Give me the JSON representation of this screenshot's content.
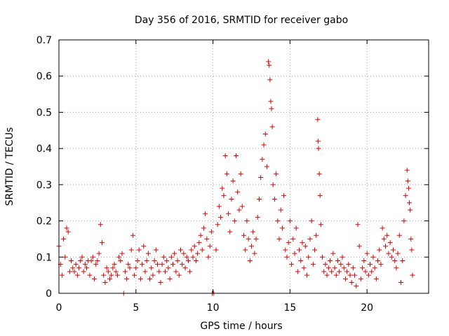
{
  "chart_data": {
    "type": "scatter",
    "title": "Day 356 of 2016, SRMTID for receiver gabo",
    "xlabel": "GPS time / hours",
    "ylabel": "SRMTID / TECUs",
    "xlim": [
      0,
      24
    ],
    "ylim": [
      0,
      0.7
    ],
    "x_ticks": [
      {
        "value": 0,
        "label": "0"
      },
      {
        "value": 5,
        "label": "5"
      },
      {
        "value": 10,
        "label": "10"
      },
      {
        "value": 15,
        "label": "15"
      },
      {
        "value": 20,
        "label": "20"
      }
    ],
    "y_ticks": [
      {
        "value": 0,
        "label": "0"
      },
      {
        "value": 0.1,
        "label": "0.1"
      },
      {
        "value": 0.2,
        "label": "0.2"
      },
      {
        "value": 0.3,
        "label": "0.3"
      },
      {
        "value": 0.4,
        "label": "0.4"
      },
      {
        "value": 0.5,
        "label": "0.5"
      },
      {
        "value": 0.6,
        "label": "0.6"
      },
      {
        "value": 0.7,
        "label": "0.7"
      }
    ],
    "grid": true,
    "marker": "+",
    "marker_color": "#e00000",
    "series": [
      {
        "name": "gabo",
        "points": [
          [
            0.0,
            0.13
          ],
          [
            0.1,
            0.08
          ],
          [
            0.2,
            0.05
          ],
          [
            0.3,
            0.15
          ],
          [
            0.4,
            0.1
          ],
          [
            0.5,
            0.18
          ],
          [
            0.6,
            0.17
          ],
          [
            0.7,
            0.06
          ],
          [
            0.8,
            0.09
          ],
          [
            0.9,
            0.07
          ],
          [
            1.0,
            0.06
          ],
          [
            1.1,
            0.08
          ],
          [
            1.2,
            0.05
          ],
          [
            1.3,
            0.07
          ],
          [
            1.4,
            0.09
          ],
          [
            1.5,
            0.1
          ],
          [
            1.6,
            0.06
          ],
          [
            1.7,
            0.08
          ],
          [
            1.8,
            0.07
          ],
          [
            1.9,
            0.09
          ],
          [
            2.0,
            0.05
          ],
          [
            2.1,
            0.09
          ],
          [
            2.2,
            0.1
          ],
          [
            2.3,
            0.04
          ],
          [
            2.4,
            0.08
          ],
          [
            2.5,
            0.09
          ],
          [
            2.6,
            0.11
          ],
          [
            2.7,
            0.19
          ],
          [
            2.8,
            0.14
          ],
          [
            2.9,
            0.05
          ],
          [
            3.0,
            0.03
          ],
          [
            3.1,
            0.07
          ],
          [
            3.2,
            0.06
          ],
          [
            3.3,
            0.04
          ],
          [
            3.4,
            0.05
          ],
          [
            3.5,
            0.07
          ],
          [
            3.6,
            0.08
          ],
          [
            3.7,
            0.06
          ],
          [
            3.8,
            0.05
          ],
          [
            3.9,
            0.1
          ],
          [
            4.0,
            0.09
          ],
          [
            4.1,
            0.11
          ],
          [
            4.2,
            0.0
          ],
          [
            4.3,
            0.06
          ],
          [
            4.4,
            0.04
          ],
          [
            4.5,
            0.08
          ],
          [
            4.6,
            0.07
          ],
          [
            4.7,
            0.12
          ],
          [
            4.8,
            0.16
          ],
          [
            4.9,
            0.05
          ],
          [
            5.0,
            0.07
          ],
          [
            5.1,
            0.09
          ],
          [
            5.2,
            0.12
          ],
          [
            5.3,
            0.04
          ],
          [
            5.4,
            0.08
          ],
          [
            5.5,
            0.13
          ],
          [
            5.6,
            0.06
          ],
          [
            5.7,
            0.09
          ],
          [
            5.8,
            0.11
          ],
          [
            5.9,
            0.04
          ],
          [
            6.0,
            0.07
          ],
          [
            6.1,
            0.05
          ],
          [
            6.2,
            0.09
          ],
          [
            6.3,
            0.12
          ],
          [
            6.4,
            0.08
          ],
          [
            6.5,
            0.06
          ],
          [
            6.6,
            0.03
          ],
          [
            6.7,
            0.08
          ],
          [
            6.8,
            0.1
          ],
          [
            6.9,
            0.06
          ],
          [
            7.0,
            0.09
          ],
          [
            7.1,
            0.07
          ],
          [
            7.2,
            0.04
          ],
          [
            7.3,
            0.1
          ],
          [
            7.4,
            0.08
          ],
          [
            7.5,
            0.11
          ],
          [
            7.6,
            0.06
          ],
          [
            7.7,
            0.09
          ],
          [
            7.8,
            0.05
          ],
          [
            7.9,
            0.12
          ],
          [
            8.0,
            0.08
          ],
          [
            8.1,
            0.11
          ],
          [
            8.2,
            0.07
          ],
          [
            8.3,
            0.1
          ],
          [
            8.4,
            0.09
          ],
          [
            8.5,
            0.06
          ],
          [
            8.6,
            0.12
          ],
          [
            8.7,
            0.1
          ],
          [
            8.8,
            0.13
          ],
          [
            8.9,
            0.09
          ],
          [
            9.0,
            0.11
          ],
          [
            9.1,
            0.14
          ],
          [
            9.2,
            0.16
          ],
          [
            9.3,
            0.12
          ],
          [
            9.4,
            0.18
          ],
          [
            9.5,
            0.22
          ],
          [
            9.6,
            0.15
          ],
          [
            9.7,
            0.1
          ],
          [
            9.8,
            0.13
          ],
          [
            9.9,
            0.17
          ],
          [
            9.95,
            0.0
          ],
          [
            10.05,
            0.0
          ],
          [
            10.2,
            0.12
          ],
          [
            10.3,
            0.19
          ],
          [
            10.4,
            0.24
          ],
          [
            10.5,
            0.21
          ],
          [
            10.6,
            0.29
          ],
          [
            10.7,
            0.27
          ],
          [
            10.8,
            0.38
          ],
          [
            10.9,
            0.33
          ],
          [
            11.0,
            0.22
          ],
          [
            11.1,
            0.17
          ],
          [
            11.2,
            0.26
          ],
          [
            11.3,
            0.31
          ],
          [
            11.4,
            0.2
          ],
          [
            11.5,
            0.38
          ],
          [
            11.6,
            0.28
          ],
          [
            11.7,
            0.23
          ],
          [
            11.8,
            0.33
          ],
          [
            11.9,
            0.24
          ],
          [
            12.0,
            0.16
          ],
          [
            12.1,
            0.12
          ],
          [
            12.2,
            0.2
          ],
          [
            12.3,
            0.15
          ],
          [
            12.4,
            0.09
          ],
          [
            12.5,
            0.13
          ],
          [
            12.6,
            0.17
          ],
          [
            12.7,
            0.11
          ],
          [
            12.8,
            0.15
          ],
          [
            12.9,
            0.21
          ],
          [
            13.0,
            0.26
          ],
          [
            13.1,
            0.32
          ],
          [
            13.2,
            0.37
          ],
          [
            13.3,
            0.41
          ],
          [
            13.4,
            0.44
          ],
          [
            13.5,
            0.35
          ],
          [
            13.6,
            0.64
          ],
          [
            13.65,
            0.63
          ],
          [
            13.7,
            0.59
          ],
          [
            13.75,
            0.53
          ],
          [
            13.8,
            0.51
          ],
          [
            13.85,
            0.46
          ],
          [
            13.9,
            0.3
          ],
          [
            14.0,
            0.26
          ],
          [
            14.1,
            0.33
          ],
          [
            14.2,
            0.2
          ],
          [
            14.3,
            0.15
          ],
          [
            14.4,
            0.23
          ],
          [
            14.5,
            0.18
          ],
          [
            14.6,
            0.27
          ],
          [
            14.7,
            0.12
          ],
          [
            14.8,
            0.1
          ],
          [
            14.9,
            0.14
          ],
          [
            15.0,
            0.2
          ],
          [
            15.1,
            0.08
          ],
          [
            15.2,
            0.15
          ],
          [
            15.3,
            0.11
          ],
          [
            15.4,
            0.18
          ],
          [
            15.5,
            0.06
          ],
          [
            15.6,
            0.12
          ],
          [
            15.7,
            0.09
          ],
          [
            15.8,
            0.14
          ],
          [
            15.9,
            0.07
          ],
          [
            16.0,
            0.13
          ],
          [
            16.1,
            0.05
          ],
          [
            16.2,
            0.1
          ],
          [
            16.3,
            0.15
          ],
          [
            16.4,
            0.2
          ],
          [
            16.5,
            0.08
          ],
          [
            16.6,
            0.12
          ],
          [
            16.7,
            0.16
          ],
          [
            16.8,
            0.48
          ],
          [
            16.82,
            0.42
          ],
          [
            16.85,
            0.4
          ],
          [
            16.9,
            0.33
          ],
          [
            16.95,
            0.27
          ],
          [
            17.0,
            0.19
          ],
          [
            17.1,
            0.1
          ],
          [
            17.2,
            0.06
          ],
          [
            17.3,
            0.08
          ],
          [
            17.4,
            0.05
          ],
          [
            17.5,
            0.07
          ],
          [
            17.6,
            0.09
          ],
          [
            17.7,
            0.06
          ],
          [
            17.8,
            0.11
          ],
          [
            17.9,
            0.07
          ],
          [
            18.0,
            0.05
          ],
          [
            18.1,
            0.09
          ],
          [
            18.2,
            0.06
          ],
          [
            18.3,
            0.08
          ],
          [
            18.4,
            0.1
          ],
          [
            18.5,
            0.07
          ],
          [
            18.6,
            0.04
          ],
          [
            18.7,
            0.06
          ],
          [
            18.8,
            0.08
          ],
          [
            18.9,
            0.05
          ],
          [
            19.0,
            0.03
          ],
          [
            19.1,
            0.07
          ],
          [
            19.2,
            0.05
          ],
          [
            19.3,
            0.02
          ],
          [
            19.4,
            0.19
          ],
          [
            19.5,
            0.13
          ],
          [
            19.6,
            0.04
          ],
          [
            19.7,
            0.07
          ],
          [
            19.8,
            0.09
          ],
          [
            19.9,
            0.06
          ],
          [
            20.0,
            0.11
          ],
          [
            20.1,
            0.05
          ],
          [
            20.2,
            0.08
          ],
          [
            20.3,
            0.06
          ],
          [
            20.4,
            0.1
          ],
          [
            20.5,
            0.07
          ],
          [
            20.6,
            0.04
          ],
          [
            20.7,
            0.09
          ],
          [
            20.8,
            0.12
          ],
          [
            20.9,
            0.08
          ],
          [
            21.0,
            0.18
          ],
          [
            21.1,
            0.15
          ],
          [
            21.2,
            0.13
          ],
          [
            21.3,
            0.16
          ],
          [
            21.4,
            0.11
          ],
          [
            21.5,
            0.14
          ],
          [
            21.6,
            0.1
          ],
          [
            21.7,
            0.12
          ],
          [
            21.8,
            0.09
          ],
          [
            21.9,
            0.07
          ],
          [
            22.0,
            0.11
          ],
          [
            22.1,
            0.16
          ],
          [
            22.2,
            0.03
          ],
          [
            22.3,
            0.09
          ],
          [
            22.4,
            0.2
          ],
          [
            22.5,
            0.27
          ],
          [
            22.6,
            0.34
          ],
          [
            22.65,
            0.31
          ],
          [
            22.7,
            0.29
          ],
          [
            22.75,
            0.25
          ],
          [
            22.8,
            0.23
          ],
          [
            22.85,
            0.15
          ],
          [
            22.9,
            0.12
          ],
          [
            22.95,
            0.05
          ]
        ]
      }
    ]
  }
}
